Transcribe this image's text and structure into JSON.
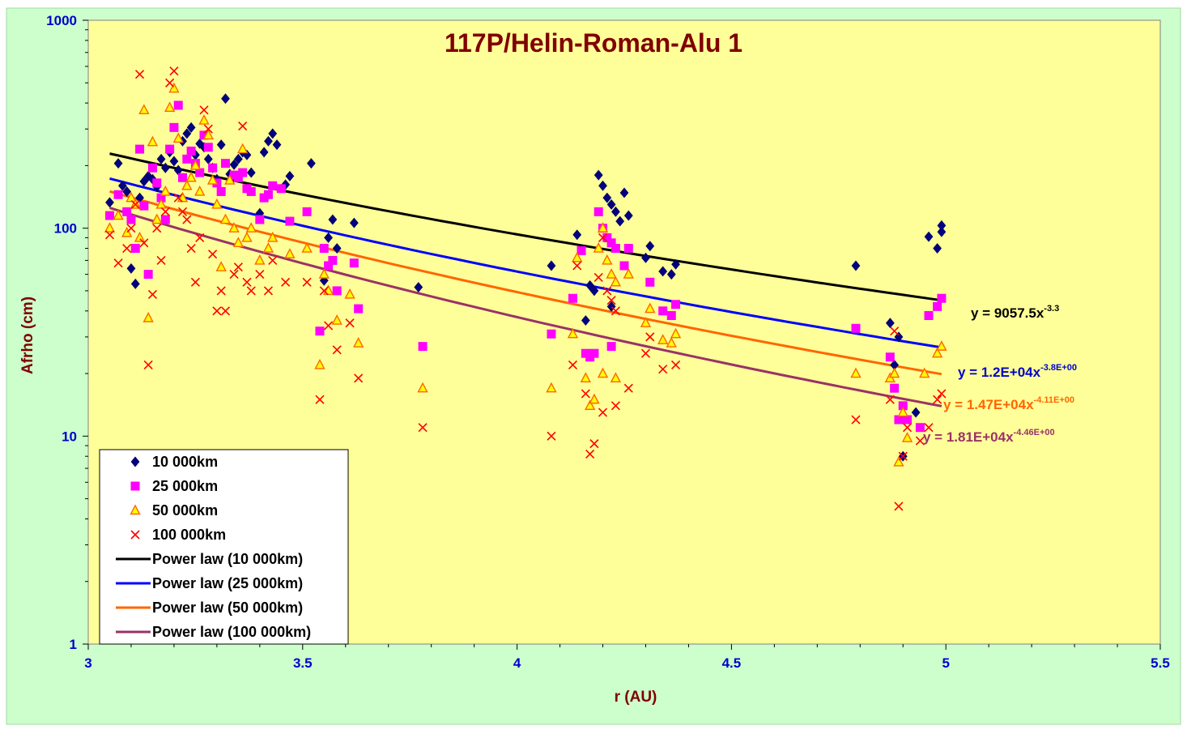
{
  "chart_data": {
    "type": "scatter",
    "title": "117P/Helin-Roman-Alu 1",
    "xlabel": "r (AU)",
    "ylabel": "Afrho (cm)",
    "xlim": [
      3,
      5.5
    ],
    "ylim": [
      1,
      1000
    ],
    "y_scale": "log",
    "x_ticks": [
      "3",
      "3.5",
      "4",
      "4.5",
      "5",
      "5.5"
    ],
    "y_ticks": [
      "1",
      "10",
      "100",
      "1000"
    ],
    "grid": false,
    "legend_position": "bottom-left",
    "colors": {
      "plot_background": "#ffff99",
      "chart_background": "#ccffcc",
      "tick_label": "#0000cc",
      "axis_title": "#800000",
      "title": "#800000"
    },
    "series": [
      {
        "name": "10 000km",
        "marker": "diamond",
        "color": "#000080",
        "points": [
          [
            3.05,
            133
          ],
          [
            3.07,
            205
          ],
          [
            3.08,
            160
          ],
          [
            3.09,
            150
          ],
          [
            3.1,
            64
          ],
          [
            3.11,
            54
          ],
          [
            3.12,
            140
          ],
          [
            3.13,
            168
          ],
          [
            3.14,
            178
          ],
          [
            3.15,
            172
          ],
          [
            3.16,
            158
          ],
          [
            3.17,
            215
          ],
          [
            3.18,
            195
          ],
          [
            3.19,
            232
          ],
          [
            3.2,
            210
          ],
          [
            3.21,
            190
          ],
          [
            3.22,
            262
          ],
          [
            3.23,
            285
          ],
          [
            3.24,
            305
          ],
          [
            3.25,
            225
          ],
          [
            3.26,
            255
          ],
          [
            3.27,
            245
          ],
          [
            3.28,
            215
          ],
          [
            3.29,
            195
          ],
          [
            3.3,
            172
          ],
          [
            3.31,
            252
          ],
          [
            3.32,
            420
          ],
          [
            3.33,
            182
          ],
          [
            3.34,
            202
          ],
          [
            3.35,
            215
          ],
          [
            3.36,
            232
          ],
          [
            3.37,
            225
          ],
          [
            3.38,
            185
          ],
          [
            3.4,
            118
          ],
          [
            3.41,
            232
          ],
          [
            3.42,
            262
          ],
          [
            3.43,
            285
          ],
          [
            3.44,
            252
          ],
          [
            3.46,
            162
          ],
          [
            3.47,
            178
          ],
          [
            3.52,
            205
          ],
          [
            3.55,
            56
          ],
          [
            3.56,
            90
          ],
          [
            3.57,
            110
          ],
          [
            3.58,
            80
          ],
          [
            3.62,
            106
          ],
          [
            3.77,
            52
          ],
          [
            4.08,
            66
          ],
          [
            4.14,
            93
          ],
          [
            4.16,
            36
          ],
          [
            4.17,
            53
          ],
          [
            4.18,
            50
          ],
          [
            4.19,
            180
          ],
          [
            4.2,
            160
          ],
          [
            4.21,
            140
          ],
          [
            4.22,
            130
          ],
          [
            4.23,
            120
          ],
          [
            4.24,
            108
          ],
          [
            4.25,
            148
          ],
          [
            4.26,
            115
          ],
          [
            4.22,
            42
          ],
          [
            4.3,
            72
          ],
          [
            4.31,
            82
          ],
          [
            4.34,
            62
          ],
          [
            4.36,
            60
          ],
          [
            4.37,
            67
          ],
          [
            4.79,
            66
          ],
          [
            4.87,
            35
          ],
          [
            4.89,
            30
          ],
          [
            4.88,
            22
          ],
          [
            4.9,
            8
          ],
          [
            4.93,
            13
          ],
          [
            4.96,
            91
          ],
          [
            4.98,
            80
          ],
          [
            4.99,
            96
          ],
          [
            4.99,
            103
          ]
        ]
      },
      {
        "name": "25 000km",
        "marker": "square",
        "color": "#ff00ff",
        "points": [
          [
            3.05,
            115
          ],
          [
            3.07,
            145
          ],
          [
            3.09,
            120
          ],
          [
            3.1,
            110
          ],
          [
            3.11,
            80
          ],
          [
            3.12,
            240
          ],
          [
            3.13,
            128
          ],
          [
            3.14,
            60
          ],
          [
            3.15,
            195
          ],
          [
            3.16,
            165
          ],
          [
            3.17,
            140
          ],
          [
            3.18,
            110
          ],
          [
            3.19,
            240
          ],
          [
            3.2,
            305
          ],
          [
            3.21,
            390
          ],
          [
            3.22,
            175
          ],
          [
            3.23,
            215
          ],
          [
            3.24,
            235
          ],
          [
            3.25,
            205
          ],
          [
            3.26,
            185
          ],
          [
            3.27,
            280
          ],
          [
            3.28,
            245
          ],
          [
            3.29,
            195
          ],
          [
            3.3,
            165
          ],
          [
            3.31,
            150
          ],
          [
            3.32,
            205
          ],
          [
            3.34,
            180
          ],
          [
            3.35,
            175
          ],
          [
            3.36,
            185
          ],
          [
            3.37,
            155
          ],
          [
            3.38,
            150
          ],
          [
            3.4,
            110
          ],
          [
            3.41,
            140
          ],
          [
            3.42,
            145
          ],
          [
            3.43,
            160
          ],
          [
            3.45,
            155
          ],
          [
            3.47,
            108
          ],
          [
            3.51,
            120
          ],
          [
            3.54,
            32
          ],
          [
            3.55,
            80
          ],
          [
            3.56,
            66
          ],
          [
            3.57,
            70
          ],
          [
            3.58,
            50
          ],
          [
            3.62,
            68
          ],
          [
            3.63,
            41
          ],
          [
            3.78,
            27
          ],
          [
            4.08,
            31
          ],
          [
            4.13,
            46
          ],
          [
            4.15,
            78
          ],
          [
            4.16,
            25
          ],
          [
            4.17,
            24
          ],
          [
            4.18,
            25
          ],
          [
            4.19,
            120
          ],
          [
            4.2,
            100
          ],
          [
            4.21,
            90
          ],
          [
            4.22,
            85
          ],
          [
            4.23,
            80
          ],
          [
            4.22,
            27
          ],
          [
            4.26,
            80
          ],
          [
            4.25,
            66
          ],
          [
            4.31,
            55
          ],
          [
            4.34,
            40
          ],
          [
            4.36,
            38
          ],
          [
            4.37,
            43
          ],
          [
            4.79,
            33
          ],
          [
            4.87,
            24
          ],
          [
            4.88,
            17
          ],
          [
            4.89,
            12
          ],
          [
            4.9,
            14
          ],
          [
            4.91,
            12
          ],
          [
            4.94,
            11
          ],
          [
            4.96,
            38
          ],
          [
            4.98,
            42
          ],
          [
            4.99,
            46
          ]
        ]
      },
      {
        "name": "50 000km",
        "marker": "triangle",
        "color": "#ff6600",
        "points": [
          [
            3.05,
            100
          ],
          [
            3.07,
            115
          ],
          [
            3.09,
            95
          ],
          [
            3.1,
            140
          ],
          [
            3.11,
            130
          ],
          [
            3.12,
            90
          ],
          [
            3.13,
            370
          ],
          [
            3.14,
            37
          ],
          [
            3.15,
            260
          ],
          [
            3.16,
            110
          ],
          [
            3.17,
            130
          ],
          [
            3.18,
            150
          ],
          [
            3.19,
            380
          ],
          [
            3.2,
            470
          ],
          [
            3.21,
            270
          ],
          [
            3.22,
            140
          ],
          [
            3.23,
            160
          ],
          [
            3.24,
            175
          ],
          [
            3.25,
            200
          ],
          [
            3.26,
            150
          ],
          [
            3.27,
            330
          ],
          [
            3.28,
            280
          ],
          [
            3.29,
            170
          ],
          [
            3.3,
            130
          ],
          [
            3.31,
            65
          ],
          [
            3.32,
            110
          ],
          [
            3.33,
            170
          ],
          [
            3.34,
            100
          ],
          [
            3.35,
            85
          ],
          [
            3.36,
            240
          ],
          [
            3.37,
            90
          ],
          [
            3.38,
            100
          ],
          [
            3.4,
            70
          ],
          [
            3.42,
            80
          ],
          [
            3.43,
            90
          ],
          [
            3.47,
            75
          ],
          [
            3.51,
            80
          ],
          [
            3.54,
            22
          ],
          [
            3.55,
            60
          ],
          [
            3.56,
            50
          ],
          [
            3.58,
            36
          ],
          [
            3.61,
            48
          ],
          [
            3.63,
            28
          ],
          [
            3.78,
            17
          ],
          [
            4.08,
            17
          ],
          [
            4.13,
            31
          ],
          [
            4.14,
            72
          ],
          [
            4.16,
            19
          ],
          [
            4.17,
            14
          ],
          [
            4.18,
            15
          ],
          [
            4.19,
            80
          ],
          [
            4.2,
            100
          ],
          [
            4.21,
            70
          ],
          [
            4.22,
            60
          ],
          [
            4.23,
            55
          ],
          [
            4.2,
            20
          ],
          [
            4.23,
            19
          ],
          [
            4.26,
            60
          ],
          [
            4.3,
            35
          ],
          [
            4.31,
            41
          ],
          [
            4.34,
            29
          ],
          [
            4.36,
            28
          ],
          [
            4.37,
            31
          ],
          [
            4.79,
            20
          ],
          [
            4.87,
            19
          ],
          [
            4.88,
            20
          ],
          [
            4.89,
            7.5
          ],
          [
            4.9,
            13
          ],
          [
            4.91,
            9.8
          ],
          [
            4.95,
            20
          ],
          [
            4.98,
            25
          ],
          [
            4.99,
            27
          ]
        ]
      },
      {
        "name": "100 000km",
        "marker": "x",
        "color": "#ff0000",
        "points": [
          [
            3.05,
            93
          ],
          [
            3.07,
            68
          ],
          [
            3.09,
            80
          ],
          [
            3.1,
            100
          ],
          [
            3.11,
            130
          ],
          [
            3.12,
            550
          ],
          [
            3.13,
            85
          ],
          [
            3.14,
            22
          ],
          [
            3.15,
            48
          ],
          [
            3.16,
            100
          ],
          [
            3.17,
            70
          ],
          [
            3.18,
            120
          ],
          [
            3.19,
            500
          ],
          [
            3.2,
            570
          ],
          [
            3.21,
            140
          ],
          [
            3.22,
            120
          ],
          [
            3.23,
            110
          ],
          [
            3.24,
            80
          ],
          [
            3.25,
            55
          ],
          [
            3.26,
            90
          ],
          [
            3.27,
            370
          ],
          [
            3.28,
            300
          ],
          [
            3.29,
            75
          ],
          [
            3.3,
            40
          ],
          [
            3.31,
            50
          ],
          [
            3.32,
            40
          ],
          [
            3.34,
            60
          ],
          [
            3.35,
            65
          ],
          [
            3.36,
            310
          ],
          [
            3.37,
            55
          ],
          [
            3.38,
            50
          ],
          [
            3.4,
            60
          ],
          [
            3.42,
            50
          ],
          [
            3.43,
            70
          ],
          [
            3.46,
            55
          ],
          [
            3.51,
            55
          ],
          [
            3.54,
            15
          ],
          [
            3.55,
            50
          ],
          [
            3.56,
            34
          ],
          [
            3.58,
            26
          ],
          [
            3.61,
            35
          ],
          [
            3.63,
            19
          ],
          [
            3.78,
            11
          ],
          [
            4.08,
            10
          ],
          [
            4.13,
            22
          ],
          [
            4.14,
            66
          ],
          [
            4.16,
            16
          ],
          [
            4.17,
            8.2
          ],
          [
            4.18,
            9.2
          ],
          [
            4.19,
            58
          ],
          [
            4.2,
            90
          ],
          [
            4.21,
            50
          ],
          [
            4.22,
            45
          ],
          [
            4.23,
            40
          ],
          [
            4.2,
            13
          ],
          [
            4.23,
            14
          ],
          [
            4.26,
            17
          ],
          [
            4.3,
            25
          ],
          [
            4.31,
            30
          ],
          [
            4.34,
            21
          ],
          [
            4.37,
            22
          ],
          [
            4.79,
            12
          ],
          [
            4.87,
            15
          ],
          [
            4.88,
            32
          ],
          [
            4.89,
            4.6
          ],
          [
            4.9,
            8
          ],
          [
            4.91,
            11
          ],
          [
            4.94,
            9.5
          ],
          [
            4.96,
            11
          ],
          [
            4.98,
            15
          ],
          [
            4.99,
            16
          ]
        ]
      }
    ],
    "trendlines": [
      {
        "name": "Power law (10 000km)",
        "color": "#000000",
        "a": 9057.5,
        "b": -3.3,
        "x_range": [
          3.05,
          4.99
        ],
        "equation": "y = 9057.5x",
        "exponent": "-3.3",
        "equation_color": "#000000"
      },
      {
        "name": "Power law (25 000km)",
        "color": "#0000ff",
        "a": 12000,
        "b": -3.8,
        "x_range": [
          3.05,
          4.99
        ],
        "equation": "y = 1.2E+04x",
        "exponent": "-3.8E+00",
        "equation_color": "#0000cc"
      },
      {
        "name": "Power law (50 000km)",
        "color": "#ff6600",
        "a": 14700,
        "b": -4.11,
        "x_range": [
          3.05,
          4.99
        ],
        "equation": "y = 1.47E+04x",
        "exponent": "-4.11E+00",
        "equation_color": "#ff6600"
      },
      {
        "name": "Power law (100 000km)",
        "color": "#993366",
        "a": 18100,
        "b": -4.46,
        "x_range": [
          3.05,
          4.99
        ],
        "equation": "y = 1.81E+04x",
        "exponent": "-4.46E+00",
        "equation_color": "#993366"
      }
    ]
  }
}
